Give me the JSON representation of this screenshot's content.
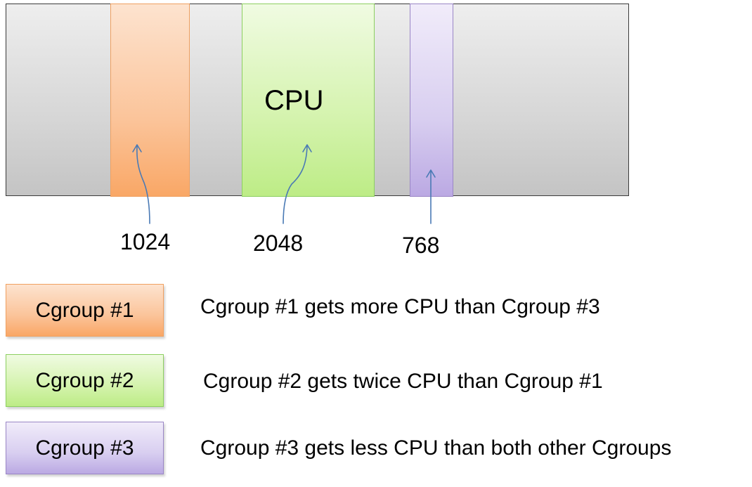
{
  "diagram": {
    "cpu_label": "CPU",
    "bars": [
      {
        "value_label": "1024",
        "color": "#fbc49a"
      },
      {
        "value_label": "2048",
        "color": "#d4f3ad"
      },
      {
        "value_label": "768",
        "color": "#d8cef0"
      }
    ],
    "legend": [
      {
        "label": "Cgroup #1",
        "description": "Cgroup #1 gets more CPU than Cgroup #3",
        "color": "#fbc49a"
      },
      {
        "label": "Cgroup #2",
        "description": "Cgroup #2 gets twice CPU than Cgroup #1",
        "color": "#d4f3ad"
      },
      {
        "label": "Cgroup #3",
        "description": "Cgroup #3 gets less CPU than both other Cgroups",
        "color": "#d8cef0"
      }
    ],
    "arrow_color": "#4a7ab5"
  }
}
